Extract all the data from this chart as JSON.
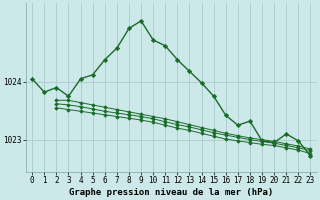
{
  "title": "Graphe pression niveau de la mer (hPa)",
  "bg_color": "#cce8e8",
  "grid_color": "#aacccc",
  "line_color": "#1a6b2a",
  "marker_color": "#1a6b2a",
  "xlim": [
    -0.5,
    23.5
  ],
  "ylim": [
    1022.45,
    1025.35
  ],
  "series": [
    {
      "x": [
        0,
        1,
        2,
        3,
        4,
        5,
        6,
        7,
        8,
        9,
        10,
        11,
        12,
        13,
        14,
        15,
        16,
        17,
        18,
        19,
        20,
        21,
        22,
        23
      ],
      "y": [
        1024.05,
        1023.82,
        1023.9,
        1023.75,
        1024.05,
        1024.12,
        1024.38,
        1024.58,
        1024.92,
        1025.05,
        1024.72,
        1024.62,
        1024.38,
        1024.18,
        1023.98,
        1023.75,
        1023.42,
        1023.25,
        1023.32,
        1022.98,
        1022.95,
        1023.1,
        1022.98,
        1022.72
      ],
      "marker": "D",
      "markersize": 2.2,
      "lw": 1.0
    },
    {
      "x": [
        2,
        3,
        4,
        5,
        6,
        7,
        8,
        9,
        10,
        11,
        12,
        13,
        14,
        15,
        16,
        17,
        18,
        19,
        20,
        21,
        22,
        23
      ],
      "y": [
        1023.68,
        1023.68,
        1023.64,
        1023.6,
        1023.56,
        1023.52,
        1023.48,
        1023.44,
        1023.4,
        1023.36,
        1023.31,
        1023.26,
        1023.21,
        1023.16,
        1023.11,
        1023.07,
        1023.03,
        1023.0,
        1022.97,
        1022.93,
        1022.89,
        1022.84
      ],
      "marker": "D",
      "markersize": 1.8,
      "lw": 0.7
    },
    {
      "x": [
        2,
        3,
        4,
        5,
        6,
        7,
        8,
        9,
        10,
        11,
        12,
        13,
        14,
        15,
        16,
        17,
        18,
        19,
        20,
        21,
        22,
        23
      ],
      "y": [
        1023.62,
        1023.6,
        1023.57,
        1023.53,
        1023.49,
        1023.46,
        1023.43,
        1023.4,
        1023.36,
        1023.31,
        1023.26,
        1023.22,
        1023.17,
        1023.12,
        1023.08,
        1023.04,
        1023.0,
        1022.97,
        1022.94,
        1022.9,
        1022.86,
        1022.81
      ],
      "marker": "D",
      "markersize": 1.8,
      "lw": 0.7
    },
    {
      "x": [
        2,
        3,
        4,
        5,
        6,
        7,
        8,
        9,
        10,
        11,
        12,
        13,
        14,
        15,
        16,
        17,
        18,
        19,
        20,
        21,
        22,
        23
      ],
      "y": [
        1023.55,
        1023.52,
        1023.49,
        1023.46,
        1023.43,
        1023.4,
        1023.37,
        1023.34,
        1023.3,
        1023.25,
        1023.2,
        1023.16,
        1023.11,
        1023.06,
        1023.01,
        1022.98,
        1022.95,
        1022.92,
        1022.9,
        1022.86,
        1022.82,
        1022.76
      ],
      "marker": "D",
      "markersize": 1.8,
      "lw": 0.7
    }
  ],
  "xticks": [
    0,
    1,
    2,
    3,
    4,
    5,
    6,
    7,
    8,
    9,
    10,
    11,
    12,
    13,
    14,
    15,
    16,
    17,
    18,
    19,
    20,
    21,
    22,
    23
  ],
  "yticks": [
    1023,
    1024
  ],
  "tick_fontsize": 5.5,
  "title_fontsize": 6.5
}
